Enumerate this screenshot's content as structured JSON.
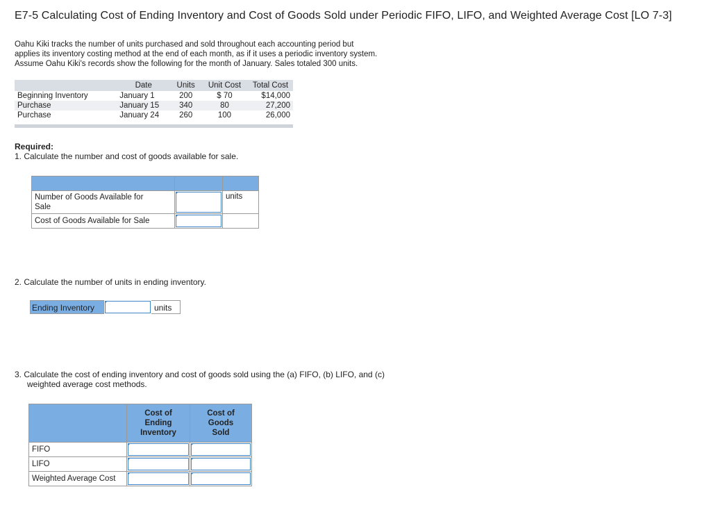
{
  "title": "E7-5 Calculating Cost of Ending Inventory and Cost of Goods Sold under Periodic FIFO, LIFO, and Weighted Average Cost [LO 7-3]",
  "intro": [
    "Oahu Kiki tracks the number of units purchased and sold throughout each accounting period but",
    "applies its inventory costing method at the end of each month, as if it uses a periodic inventory system.",
    "Assume Oahu Kiki's records show the following for the month of January. Sales totaled 300 units."
  ],
  "purchases": {
    "headers": {
      "label": "",
      "date": "Date",
      "units": "Units",
      "unit_cost": "Unit Cost",
      "total_cost": "Total Cost"
    },
    "rows": [
      {
        "label": "Beginning Inventory",
        "date": "January 1",
        "units": "200",
        "unit_cost": "$ 70",
        "total_cost": "$14,000"
      },
      {
        "label": "Purchase",
        "date": "January 15",
        "units": "340",
        "unit_cost": "80",
        "total_cost": "27,200"
      },
      {
        "label": "Purchase",
        "date": "January 24",
        "units": "260",
        "unit_cost": "100",
        "total_cost": "26,000"
      }
    ]
  },
  "required": {
    "heading": "Required:",
    "q1": "1.  Calculate the number and cost of goods available for sale.",
    "q2": "2.  Calculate the number of units in ending inventory.",
    "q3_line1": "3.  Calculate the cost of ending inventory and cost of goods sold using the (a) FIFO, (b) LIFO, and (c)",
    "q3_line2": "weighted average cost methods."
  },
  "table1": {
    "row1_label_a": "Number of Goods Available for",
    "row1_label_b": "Sale",
    "row1_unit": "units",
    "row2_label": "Cost of Goods Available for Sale",
    "row1_value": "",
    "row2_value": ""
  },
  "ending": {
    "label": "Ending Inventory",
    "value": "",
    "unit": "units"
  },
  "table3": {
    "col1_a": "Cost of",
    "col1_b": "Ending",
    "col1_c": "Inventory",
    "col2_a": "Cost of",
    "col2_b": "Goods",
    "col2_c": "Sold",
    "rows": [
      {
        "label": "FIFO"
      },
      {
        "label": "LIFO"
      },
      {
        "label": "Weighted Average Cost"
      }
    ]
  },
  "colors": {
    "header_blue": "#7aaee3",
    "input_border": "#3f86c8"
  }
}
